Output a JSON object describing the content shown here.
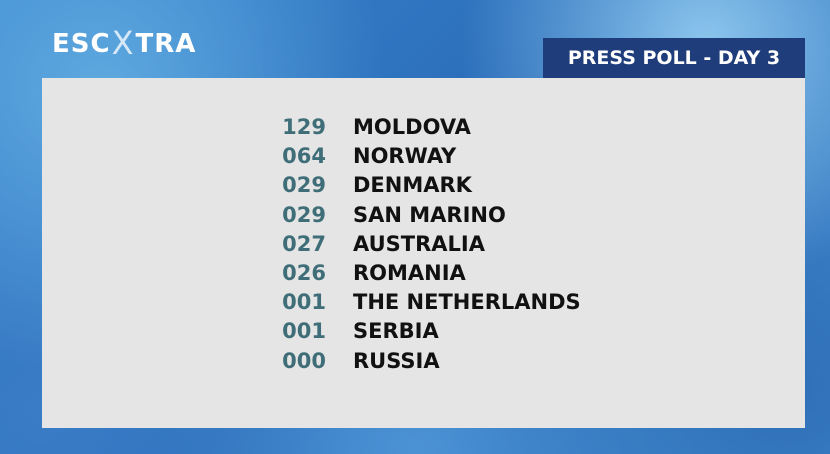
{
  "logo": {
    "left": "ESC",
    "middle": "X",
    "right": "TRA"
  },
  "header": {
    "title": "PRESS POLL - DAY 3"
  },
  "table": {
    "rows": [
      [
        "129",
        "MOLDOVA"
      ],
      [
        "064",
        "NORWAY"
      ],
      [
        "029",
        "DENMARK"
      ],
      [
        "029",
        "SAN MARINO"
      ],
      [
        "027",
        "AUSTRALIA"
      ],
      [
        "026",
        "ROMANIA"
      ],
      [
        "001",
        "THE NETHERLANDS"
      ],
      [
        "001",
        "SERBIA"
      ],
      [
        "000",
        "RUSSIA"
      ]
    ]
  }
}
